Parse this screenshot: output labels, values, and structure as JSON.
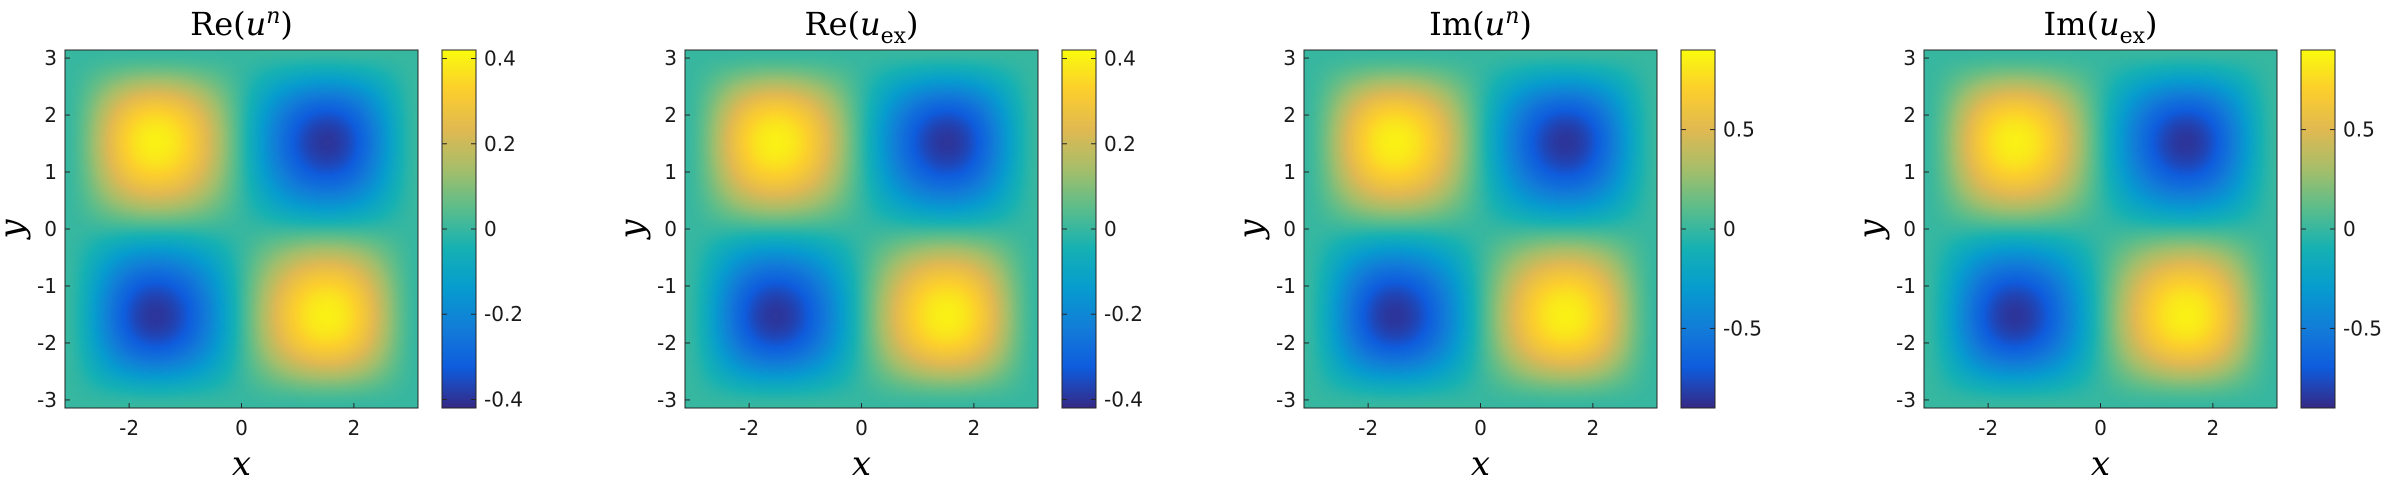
{
  "chart_data": [
    {
      "type": "heatmap",
      "title": {
        "pre": "Re(",
        "var": "u",
        "sup": "n",
        "sub": "",
        "post": ")"
      },
      "xlabel": "x",
      "ylabel": "y",
      "xlim": [
        -3.1416,
        3.1416
      ],
      "ylim": [
        -3.1416,
        3.1416
      ],
      "xticks": [
        "-2",
        "0",
        "2"
      ],
      "yticks": [
        "-3",
        "-2",
        "-1",
        "0",
        "1",
        "2",
        "3"
      ],
      "field": "amplitude * sin(x) * sin(-y), smoothly decaying to 0 at the boundary",
      "amplitude": 0.41,
      "clim": [
        -0.42,
        0.42
      ],
      "colorbar_ticks": [
        "-0.4",
        "-0.2",
        "0",
        "0.2",
        "0.4"
      ],
      "colorbar_tick_values": [
        -0.4,
        -0.2,
        0,
        0.2,
        0.4
      ],
      "grid": false
    },
    {
      "type": "heatmap",
      "title": {
        "pre": "Re(",
        "var": "u",
        "sup": "",
        "sub": "ex",
        "post": ")"
      },
      "xlabel": "x",
      "ylabel": "y",
      "xlim": [
        -3.1416,
        3.1416
      ],
      "ylim": [
        -3.1416,
        3.1416
      ],
      "xticks": [
        "-2",
        "0",
        "2"
      ],
      "yticks": [
        "-3",
        "-2",
        "-1",
        "0",
        "1",
        "2",
        "3"
      ],
      "field": "amplitude * sin(x) * sin(-y), smoothly decaying to 0 at the boundary",
      "amplitude": 0.41,
      "clim": [
        -0.42,
        0.42
      ],
      "colorbar_ticks": [
        "-0.4",
        "-0.2",
        "0",
        "0.2",
        "0.4"
      ],
      "colorbar_tick_values": [
        -0.4,
        -0.2,
        0,
        0.2,
        0.4
      ],
      "grid": false
    },
    {
      "type": "heatmap",
      "title": {
        "pre": "Im(",
        "var": "u",
        "sup": "n",
        "sub": "",
        "post": ")"
      },
      "xlabel": "x",
      "ylabel": "y",
      "xlim": [
        -3.1416,
        3.1416
      ],
      "ylim": [
        -3.1416,
        3.1416
      ],
      "xticks": [
        "-2",
        "0",
        "2"
      ],
      "yticks": [
        "-3",
        "-2",
        "-1",
        "0",
        "1",
        "2",
        "3"
      ],
      "field": "amplitude * sin(x) * sin(-y), smoothly decaying to 0 at the boundary",
      "amplitude": 0.88,
      "clim": [
        -0.9,
        0.9
      ],
      "colorbar_ticks": [
        "-0.5",
        "0",
        "0.5"
      ],
      "colorbar_tick_values": [
        -0.5,
        0,
        0.5
      ],
      "grid": false
    },
    {
      "type": "heatmap",
      "title": {
        "pre": "Im(",
        "var": "u",
        "sup": "",
        "sub": "ex",
        "post": ")"
      },
      "xlabel": "x",
      "ylabel": "y",
      "xlim": [
        -3.1416,
        3.1416
      ],
      "ylim": [
        -3.1416,
        3.1416
      ],
      "xticks": [
        "-2",
        "0",
        "2"
      ],
      "yticks": [
        "-3",
        "-2",
        "-1",
        "0",
        "1",
        "2",
        "3"
      ],
      "field": "amplitude * sin(x) * sin(-y), smoothly decaying to 0 at the boundary",
      "amplitude": 0.88,
      "clim": [
        -0.9,
        0.9
      ],
      "colorbar_ticks": [
        "-0.5",
        "0",
        "0.5"
      ],
      "colorbar_tick_values": [
        -0.5,
        0,
        0.5
      ],
      "grid": false
    }
  ],
  "colormap": "parula"
}
